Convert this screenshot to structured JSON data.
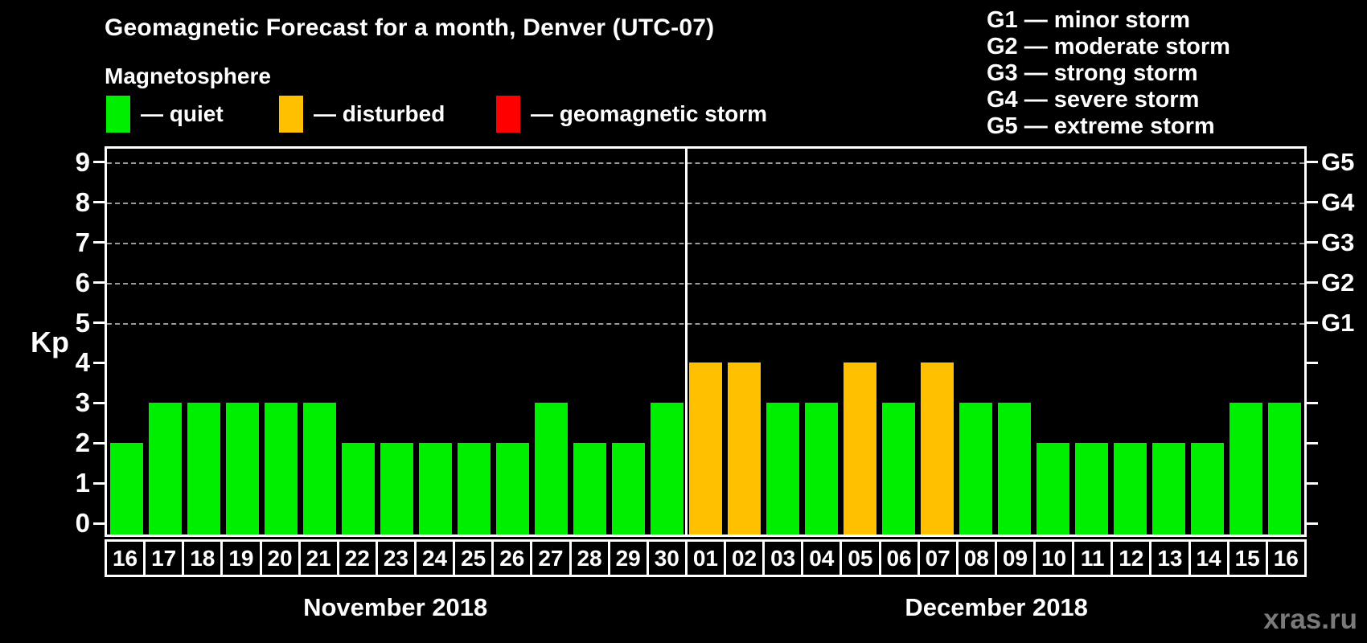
{
  "title": "Geomagnetic Forecast for a month, Denver (UTC-07)",
  "subtitle": "Magnetosphere",
  "legend": {
    "items": [
      {
        "key": "quiet",
        "label": "— quiet",
        "color": "#00EE00"
      },
      {
        "key": "disturbed",
        "label": "— disturbed",
        "color": "#FFC000"
      },
      {
        "key": "storm",
        "label": "— geomagnetic storm",
        "color": "#FF0000"
      }
    ]
  },
  "storm_scale_legend": [
    "G1 — minor storm",
    "G2 — moderate storm",
    "G3 — strong storm",
    "G4 — severe storm",
    "G5 — extreme storm"
  ],
  "watermark": "xras.ru",
  "chart_data": {
    "type": "bar",
    "title": "Geomagnetic Forecast for a month, Denver (UTC-07)",
    "ylabel": "Kp",
    "ylim": [
      0,
      9
    ],
    "yticks": [
      0,
      1,
      2,
      3,
      4,
      5,
      6,
      7,
      8,
      9
    ],
    "gridlines_at_kp": [
      5,
      6,
      7,
      8,
      9
    ],
    "grid_color": "#9A9A9A",
    "right_axis_labels": [
      {
        "label": "G5",
        "kp": 9
      },
      {
        "label": "G4",
        "kp": 8
      },
      {
        "label": "G3",
        "kp": 7
      },
      {
        "label": "G2",
        "kp": 6
      },
      {
        "label": "G1",
        "kp": 5
      }
    ],
    "colors": {
      "quiet": "#00EE00",
      "disturbed": "#FFC000",
      "storm": "#FF0000"
    },
    "months": [
      {
        "label": "November 2018",
        "days": [
          {
            "day": "16",
            "kp": 2,
            "status": "quiet"
          },
          {
            "day": "17",
            "kp": 3,
            "status": "quiet"
          },
          {
            "day": "18",
            "kp": 3,
            "status": "quiet"
          },
          {
            "day": "19",
            "kp": 3,
            "status": "quiet"
          },
          {
            "day": "20",
            "kp": 3,
            "status": "quiet"
          },
          {
            "day": "21",
            "kp": 3,
            "status": "quiet"
          },
          {
            "day": "22",
            "kp": 2,
            "status": "quiet"
          },
          {
            "day": "23",
            "kp": 2,
            "status": "quiet"
          },
          {
            "day": "24",
            "kp": 2,
            "status": "quiet"
          },
          {
            "day": "25",
            "kp": 2,
            "status": "quiet"
          },
          {
            "day": "26",
            "kp": 2,
            "status": "quiet"
          },
          {
            "day": "27",
            "kp": 3,
            "status": "quiet"
          },
          {
            "day": "28",
            "kp": 2,
            "status": "quiet"
          },
          {
            "day": "29",
            "kp": 2,
            "status": "quiet"
          },
          {
            "day": "30",
            "kp": 3,
            "status": "quiet"
          }
        ]
      },
      {
        "label": "December 2018",
        "days": [
          {
            "day": "01",
            "kp": 4,
            "status": "disturbed"
          },
          {
            "day": "02",
            "kp": 4,
            "status": "disturbed"
          },
          {
            "day": "03",
            "kp": 3,
            "status": "quiet"
          },
          {
            "day": "04",
            "kp": 3,
            "status": "quiet"
          },
          {
            "day": "05",
            "kp": 4,
            "status": "disturbed"
          },
          {
            "day": "06",
            "kp": 3,
            "status": "quiet"
          },
          {
            "day": "07",
            "kp": 4,
            "status": "disturbed"
          },
          {
            "day": "08",
            "kp": 3,
            "status": "quiet"
          },
          {
            "day": "09",
            "kp": 3,
            "status": "quiet"
          },
          {
            "day": "10",
            "kp": 2,
            "status": "quiet"
          },
          {
            "day": "11",
            "kp": 2,
            "status": "quiet"
          },
          {
            "day": "12",
            "kp": 2,
            "status": "quiet"
          },
          {
            "day": "13",
            "kp": 2,
            "status": "quiet"
          },
          {
            "day": "14",
            "kp": 2,
            "status": "quiet"
          },
          {
            "day": "15",
            "kp": 3,
            "status": "quiet"
          },
          {
            "day": "16",
            "kp": 3,
            "status": "quiet"
          }
        ]
      }
    ]
  }
}
